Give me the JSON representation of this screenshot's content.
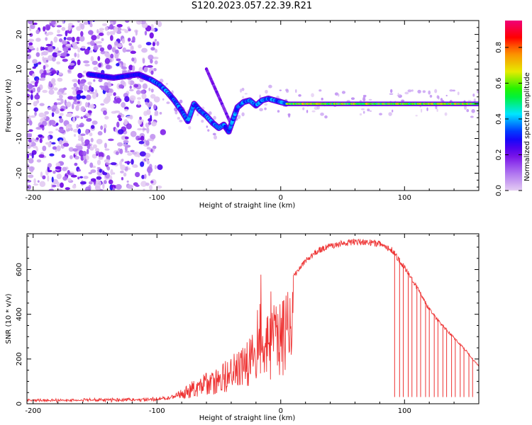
{
  "title": "S120.2023.057.22.39.R21",
  "chart_data": [
    {
      "type": "heatmap",
      "xlabel": "Height of straight line (km)",
      "ylabel": "Frequency (Hz)",
      "xlim": [
        -205,
        160
      ],
      "ylim": [
        -25,
        24
      ],
      "xticks": [
        -200,
        -100,
        0,
        100
      ],
      "yticks": [
        -20,
        -10,
        0,
        10,
        20
      ],
      "ridge": {
        "x": [
          -155,
          -145,
          -135,
          -125,
          -115,
          -105,
          -98,
          -92,
          -86,
          -80,
          -75,
          -70,
          -65,
          -60,
          -55,
          -50,
          -46,
          -42,
          -39,
          -35,
          -30,
          -25,
          -20,
          -15,
          -10,
          -5,
          0,
          5,
          160
        ],
        "y": [
          8.5,
          8,
          7.5,
          8,
          8.5,
          7,
          5.5,
          3.5,
          1,
          -2,
          -5,
          0,
          -2,
          -3.5,
          -5.5,
          -7,
          -6,
          -8,
          -5,
          -1,
          0.5,
          1,
          -0.5,
          1,
          1.5,
          1,
          0.5,
          0,
          0
        ]
      },
      "colorbar": {
        "label": "Normalized spectral amplitude",
        "range": [
          0,
          0.95
        ],
        "ticks": [
          "0.0",
          "0.2",
          "0.4",
          "0.6",
          "0.8"
        ]
      }
    },
    {
      "type": "line",
      "xlabel": "Height of straight line (km)",
      "ylabel": "SNR (10 * v/v)",
      "xlim": [
        -205,
        160
      ],
      "ylim": [
        0,
        760
      ],
      "xticks": [
        -200,
        -100,
        0,
        100
      ],
      "yticks": [
        0,
        200,
        400,
        600
      ],
      "color": "#ee3333",
      "envelope": {
        "x": [
          -205,
          -120,
          -100,
          -90,
          -80,
          -70,
          -60,
          -50,
          -40,
          -30,
          -20,
          -10,
          0,
          10,
          20,
          30,
          40,
          50,
          60,
          70,
          80,
          90,
          100,
          110,
          120,
          130,
          140,
          150,
          160
        ],
        "y": [
          15,
          20,
          22,
          30,
          60,
          110,
          140,
          170,
          210,
          270,
          340,
          410,
          480,
          580,
          650,
          700,
          720,
          730,
          740,
          735,
          730,
          700,
          620,
          530,
          430,
          360,
          300,
          240,
          170
        ]
      },
      "dropouts_x": [
        92,
        96,
        99,
        103,
        106,
        110,
        113,
        117,
        120,
        124,
        127,
        131,
        134,
        138,
        141,
        145,
        148,
        152,
        155
      ]
    }
  ]
}
